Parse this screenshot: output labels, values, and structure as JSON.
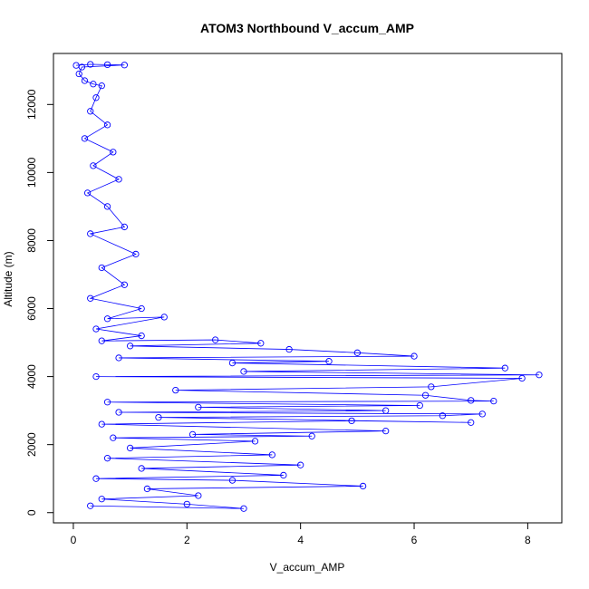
{
  "chart_data": {
    "type": "scatter",
    "title": "ATOM3 Northbound V_accum_AMP",
    "xlabel": "V_accum_AMP",
    "ylabel": "Altitude (m)",
    "xlim": [
      -0.35,
      8.6
    ],
    "ylim": [
      -300,
      13500
    ],
    "xticks": [
      0,
      2,
      4,
      6,
      8
    ],
    "yticks": [
      0,
      2000,
      4000,
      6000,
      8000,
      10000,
      12000
    ],
    "grid": false,
    "legend": "none",
    "marker": "open-circle",
    "connect_points": true,
    "color": "#0000ff",
    "series": [
      {
        "points": [
          [
            0.05,
            13150
          ],
          [
            0.3,
            13180
          ],
          [
            0.6,
            13170
          ],
          [
            0.9,
            13160
          ],
          [
            0.15,
            13100
          ],
          [
            0.1,
            12900
          ],
          [
            0.2,
            12700
          ],
          [
            0.35,
            12600
          ],
          [
            0.5,
            12550
          ],
          [
            0.4,
            12200
          ],
          [
            0.3,
            11800
          ],
          [
            0.6,
            11400
          ],
          [
            0.2,
            11000
          ],
          [
            0.7,
            10600
          ],
          [
            0.35,
            10200
          ],
          [
            0.8,
            9800
          ],
          [
            0.25,
            9400
          ],
          [
            0.6,
            9000
          ],
          [
            0.9,
            8400
          ],
          [
            0.3,
            8200
          ],
          [
            1.1,
            7600
          ],
          [
            0.5,
            7200
          ],
          [
            0.9,
            6700
          ],
          [
            0.3,
            6300
          ],
          [
            1.2,
            6000
          ],
          [
            0.6,
            5700
          ],
          [
            1.6,
            5750
          ],
          [
            0.4,
            5400
          ],
          [
            1.2,
            5200
          ],
          [
            0.5,
            5050
          ],
          [
            2.5,
            5080
          ],
          [
            3.3,
            4980
          ],
          [
            1.0,
            4900
          ],
          [
            3.8,
            4800
          ],
          [
            5.0,
            4700
          ],
          [
            6.0,
            4600
          ],
          [
            0.8,
            4550
          ],
          [
            4.5,
            4450
          ],
          [
            2.8,
            4400
          ],
          [
            7.6,
            4250
          ],
          [
            3.0,
            4150
          ],
          [
            8.2,
            4050
          ],
          [
            0.4,
            4000
          ],
          [
            7.9,
            3950
          ],
          [
            6.3,
            3700
          ],
          [
            1.8,
            3600
          ],
          [
            6.2,
            3450
          ],
          [
            7.0,
            3300
          ],
          [
            7.4,
            3280
          ],
          [
            0.6,
            3250
          ],
          [
            6.1,
            3150
          ],
          [
            2.2,
            3100
          ],
          [
            5.5,
            3000
          ],
          [
            0.8,
            2950
          ],
          [
            7.2,
            2900
          ],
          [
            6.5,
            2850
          ],
          [
            1.5,
            2800
          ],
          [
            7.0,
            2650
          ],
          [
            4.9,
            2700
          ],
          [
            0.5,
            2600
          ],
          [
            5.5,
            2400
          ],
          [
            2.1,
            2300
          ],
          [
            4.2,
            2250
          ],
          [
            0.7,
            2200
          ],
          [
            3.2,
            2100
          ],
          [
            1.0,
            1900
          ],
          [
            3.5,
            1700
          ],
          [
            0.6,
            1600
          ],
          [
            4.0,
            1400
          ],
          [
            1.2,
            1300
          ],
          [
            3.7,
            1100
          ],
          [
            0.4,
            1000
          ],
          [
            2.8,
            950
          ],
          [
            5.1,
            780
          ],
          [
            1.3,
            700
          ],
          [
            2.2,
            500
          ],
          [
            0.5,
            400
          ],
          [
            2.0,
            250
          ],
          [
            3.0,
            120
          ],
          [
            0.3,
            200
          ]
        ]
      }
    ]
  }
}
